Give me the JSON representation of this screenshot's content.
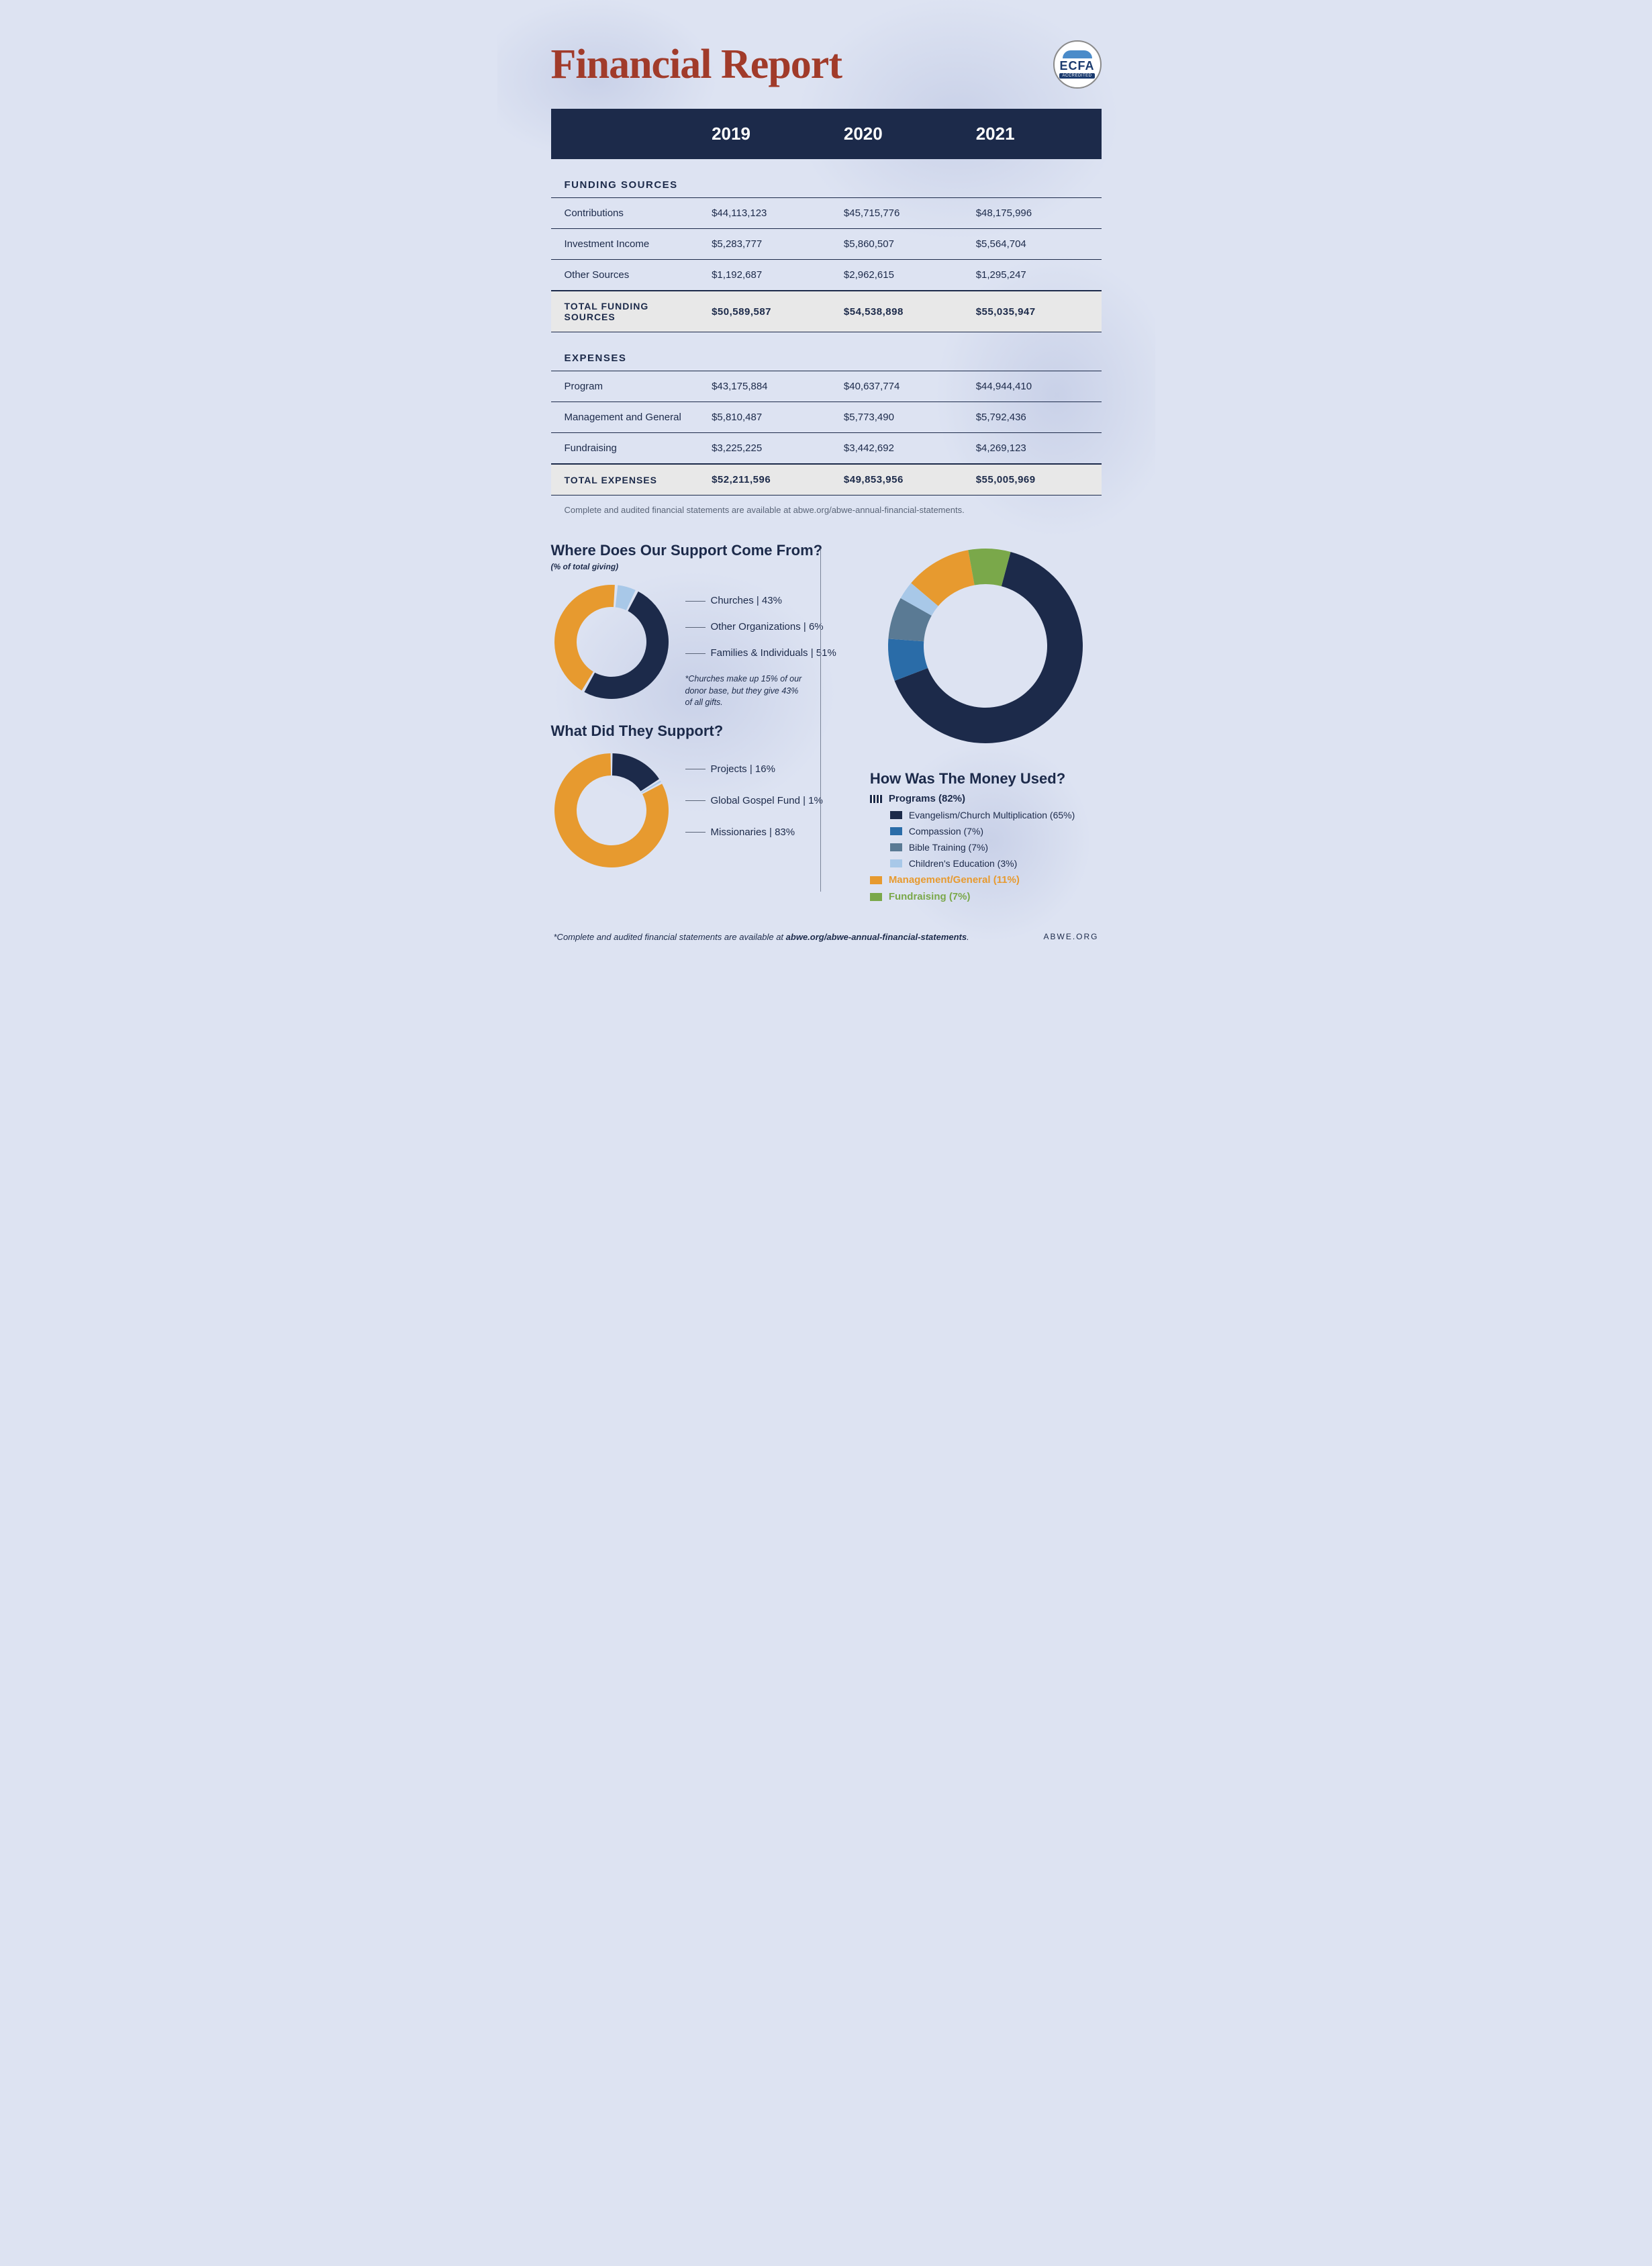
{
  "colors": {
    "navy": "#1c2a4a",
    "rust": "#a13b2a",
    "orange": "#e79a2f",
    "blue_med": "#2a6ca8",
    "blue_gray": "#5a7a94",
    "blue_light": "#a8c8e8",
    "green": "#7aa84a",
    "bg": "#dde3f2",
    "gray_row": "#e8e8e8"
  },
  "header": {
    "title": "Financial Report",
    "badge_main": "ECFA",
    "badge_sub": "ACCREDITED"
  },
  "years": [
    "2019",
    "2020",
    "2021"
  ],
  "funding": {
    "title": "FUNDING SOURCES",
    "rows": [
      {
        "label": "Contributions",
        "vals": [
          "$44,113,123",
          "$45,715,776",
          "$48,175,996"
        ]
      },
      {
        "label": "Investment Income",
        "vals": [
          "$5,283,777",
          "$5,860,507",
          "$5,564,704"
        ]
      },
      {
        "label": "Other Sources",
        "vals": [
          "$1,192,687",
          "$2,962,615",
          "$1,295,247"
        ]
      }
    ],
    "total": {
      "label": "TOTAL FUNDING SOURCES",
      "vals": [
        "$50,589,587",
        "$54,538,898",
        "$55,035,947"
      ]
    }
  },
  "expenses": {
    "title": "EXPENSES",
    "rows": [
      {
        "label": "Program",
        "vals": [
          "$43,175,884",
          "$40,637,774",
          "$44,944,410"
        ]
      },
      {
        "label": "Management and General",
        "vals": [
          "$5,810,487",
          "$5,773,490",
          "$5,792,436"
        ]
      },
      {
        "label": "Fundraising",
        "vals": [
          "$3,225,225",
          "$3,442,692",
          "$4,269,123"
        ]
      }
    ],
    "total": {
      "label": "TOTAL EXPENSES",
      "vals": [
        "$52,211,596",
        "$49,853,956",
        "$55,005,969"
      ]
    }
  },
  "audit_note": "Complete and audited financial statements are available at abwe.org/abwe-annual-financial-statements.",
  "support_from": {
    "title": "Where Does Our Support Come From?",
    "subtitle": "(% of total giving)",
    "slices": [
      {
        "label": "Churches | 43%",
        "value": 43,
        "color": "#e79a2f"
      },
      {
        "label": "Other Organizations | 6%",
        "value": 6,
        "color": "#a8c8e8"
      },
      {
        "label": "Families & Individuals | 51%",
        "value": 51,
        "color": "#1c2a4a"
      }
    ],
    "note": "*Churches make up 15% of our donor base, but they give 43% of all gifts.",
    "donut": {
      "outer_r": 85,
      "inner_r": 52,
      "gap_deg": 3
    }
  },
  "supported": {
    "title": "What Did They Support?",
    "slices": [
      {
        "label": "Projects | 16%",
        "value": 16,
        "color": "#1c2a4a"
      },
      {
        "label": "Global Gospel Fund | 1%",
        "value": 1,
        "color": "#a8c8e8"
      },
      {
        "label": "Missionaries | 83%",
        "value": 83,
        "color": "#e79a2f"
      }
    ],
    "donut": {
      "outer_r": 85,
      "inner_r": 52,
      "gap_deg": 2
    }
  },
  "money_used": {
    "title": "How Was The Money Used?",
    "slices": [
      {
        "value": 65,
        "color": "#1c2a4a"
      },
      {
        "value": 7,
        "color": "#2a6ca8"
      },
      {
        "value": 7,
        "color": "#5a7a94"
      },
      {
        "value": 3,
        "color": "#a8c8e8"
      },
      {
        "value": 11,
        "color": "#e79a2f"
      },
      {
        "value": 7,
        "color": "#7aa84a"
      }
    ],
    "donut": {
      "outer_r": 145,
      "inner_r": 92,
      "gap_deg": 0
    },
    "legend": {
      "programs_hdr": "Programs (82%)",
      "programs": [
        {
          "label": "Evangelism/Church Multiplication (65%)",
          "color": "#1c2a4a"
        },
        {
          "label": "Compassion (7%)",
          "color": "#2a6ca8"
        },
        {
          "label": "Bible Training (7%)",
          "color": "#5a7a94"
        },
        {
          "label": "Children's Education (3%)",
          "color": "#a8c8e8"
        }
      ],
      "mgmt": {
        "label": "Management/General (11%)",
        "color": "#e79a2f"
      },
      "fund": {
        "label": "Fundraising (7%)",
        "color": "#7aa84a"
      }
    }
  },
  "footer": {
    "left_prefix": "*Complete and audited financial statements are available at ",
    "left_bold": "abwe.org/abwe-annual-financial-statements",
    "right": "ABWE.ORG"
  }
}
